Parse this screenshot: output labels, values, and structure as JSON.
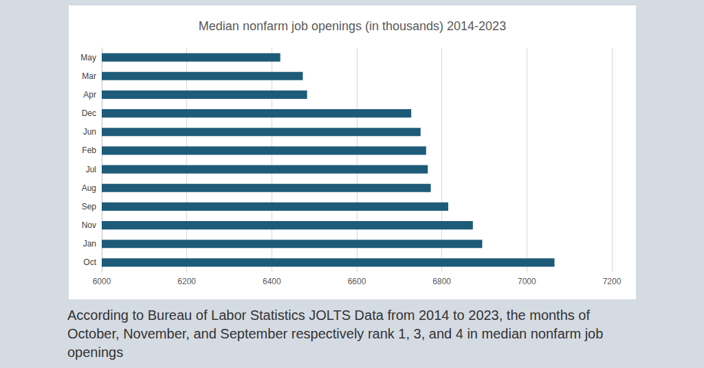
{
  "chart_data": {
    "type": "bar",
    "orientation": "horizontal",
    "title": "Median nonfarm job openings (in thousands) 2014-2023",
    "categories": [
      "May",
      "Mar",
      "Apr",
      "Dec",
      "Jun",
      "Feb",
      "Jul",
      "Aug",
      "Sep",
      "Nov",
      "Jan",
      "Oct"
    ],
    "values": [
      6420,
      6473,
      6483,
      6728,
      6750,
      6763,
      6767,
      6774,
      6815,
      6873,
      6895,
      7065
    ],
    "color": "#1d5b79",
    "xlim": [
      6000,
      7200
    ],
    "xticks": [
      6000,
      6200,
      6400,
      6600,
      6800,
      7000,
      7200
    ],
    "grid": true,
    "annotations": [
      "According to Bureau of Labor Statistics JOLTS Data from 2014 to 2023, the months of October, November, and September respectively rank 1, 3, and 4 in median nonfarm job openings"
    ]
  }
}
